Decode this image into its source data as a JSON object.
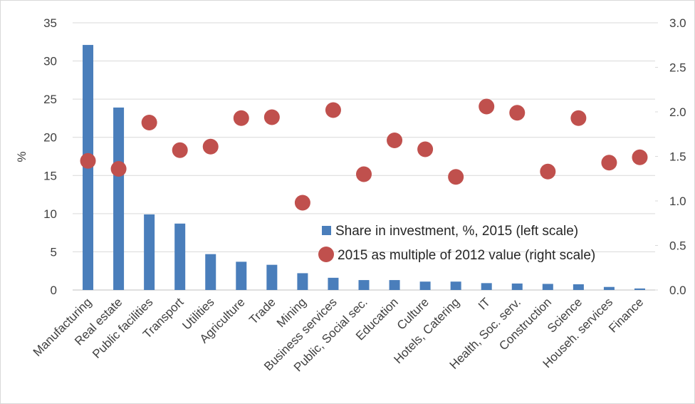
{
  "chart_data": {
    "type": "bar_dot",
    "y_label": "%",
    "categories": [
      "Manufacturing",
      "Real estate",
      "Public facilities",
      "Transport",
      "Utilities",
      "Agriculture",
      "Trade",
      "Mining",
      "Business services",
      "Public, Social sec.",
      "Education",
      "Culture",
      "Hotels, Catering",
      "IT",
      "Health, Soc. serv.",
      "Construction",
      "Science",
      "Househ. services",
      "Finance"
    ],
    "series": [
      {
        "name": "Share in investment, %, 2015 (left scale)",
        "color": "#4a7ebb",
        "values": [
          32.1,
          23.9,
          9.9,
          8.7,
          4.7,
          3.7,
          3.3,
          2.2,
          1.6,
          1.3,
          1.3,
          1.1,
          1.1,
          0.9,
          0.85,
          0.8,
          0.75,
          0.4,
          0.2
        ]
      },
      {
        "name": "2015 as multiple of 2012 value (right scale)",
        "color": "#c0504d",
        "axis": "y2",
        "values": [
          1.45,
          1.36,
          1.88,
          1.57,
          1.61,
          1.93,
          1.94,
          0.98,
          2.02,
          1.3,
          1.68,
          1.58,
          1.27,
          2.06,
          1.99,
          1.33,
          1.93,
          1.43,
          1.49
        ]
      }
    ],
    "ylim": [
      0,
      35
    ],
    "yticks": [
      0,
      5,
      10,
      15,
      20,
      25,
      30,
      35
    ],
    "y2lim": [
      0,
      3
    ],
    "y2ticks": [
      {
        "value": 0,
        "label": "0.0"
      },
      {
        "value": 0.5,
        "label": "0.5"
      },
      {
        "value": 1,
        "label": "1.0"
      },
      {
        "value": 1.5,
        "label": "1.5"
      },
      {
        "value": 2,
        "label": "2.0"
      },
      {
        "value": 2.5,
        "label": "2.5"
      },
      {
        "value": 3,
        "label": "3.0"
      }
    ],
    "grid": true
  }
}
